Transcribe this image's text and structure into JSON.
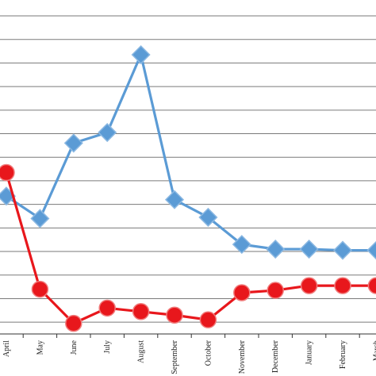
{
  "chart_data": {
    "type": "line",
    "categories": [
      "April",
      "May",
      "June",
      "July",
      "August",
      "September",
      "October",
      "November",
      "December",
      "January",
      "February",
      "March"
    ],
    "series": [
      {
        "values": [
          2.35,
          1.4,
          4.6,
          5.05,
          8.35,
          2.2,
          1.45,
          0.3,
          0.1,
          0.1,
          0.05,
          0.05
        ],
        "color": "#5b9bd5",
        "marker": "diamond"
      },
      {
        "values": [
          3.35,
          -1.6,
          -3.05,
          -2.4,
          -2.55,
          -2.7,
          -2.9,
          -1.75,
          -1.65,
          -1.45,
          -1.45,
          -1.45
        ],
        "color": "#e8171c",
        "marker": "circle"
      }
    ],
    "ylim": [
      -3.5,
      10
    ],
    "y_gridlines": true,
    "title": "",
    "xlabel": "",
    "ylabel": ""
  }
}
